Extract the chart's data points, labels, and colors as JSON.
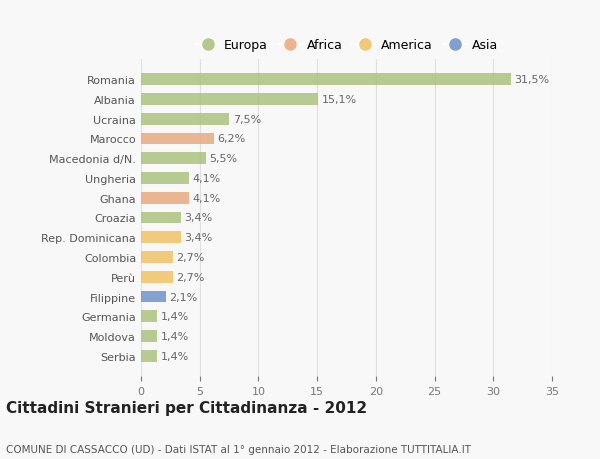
{
  "categories": [
    "Romania",
    "Albania",
    "Ucraina",
    "Marocco",
    "Macedonia d/N.",
    "Ungheria",
    "Ghana",
    "Croazia",
    "Rep. Dominicana",
    "Colombia",
    "Perù",
    "Filippine",
    "Germania",
    "Moldova",
    "Serbia"
  ],
  "values": [
    31.5,
    15.1,
    7.5,
    6.2,
    5.5,
    4.1,
    4.1,
    3.4,
    3.4,
    2.7,
    2.7,
    2.1,
    1.4,
    1.4,
    1.4
  ],
  "labels": [
    "31,5%",
    "15,1%",
    "7,5%",
    "6,2%",
    "5,5%",
    "4,1%",
    "4,1%",
    "3,4%",
    "3,4%",
    "2,7%",
    "2,7%",
    "2,1%",
    "1,4%",
    "1,4%",
    "1,4%"
  ],
  "continents": [
    "Europa",
    "Europa",
    "Europa",
    "Africa",
    "Europa",
    "Europa",
    "Africa",
    "Europa",
    "America",
    "America",
    "America",
    "Asia",
    "Europa",
    "Europa",
    "Europa"
  ],
  "continent_colors": {
    "Europa": "#a8c07a",
    "Africa": "#e8a87c",
    "America": "#f0c060",
    "Asia": "#6b8fc7"
  },
  "legend_order": [
    "Europa",
    "Africa",
    "America",
    "Asia"
  ],
  "title": "Cittadini Stranieri per Cittadinanza - 2012",
  "subtitle": "COMUNE DI CASSACCO (UD) - Dati ISTAT al 1° gennaio 2012 - Elaborazione TUTTITALIA.IT",
  "xlim": [
    0,
    35
  ],
  "xticks": [
    0,
    5,
    10,
    15,
    20,
    25,
    30,
    35
  ],
  "background_color": "#f8f8f8",
  "grid_color": "#e0e0e0",
  "bar_height": 0.6,
  "label_fontsize": 8,
  "tick_fontsize": 8,
  "title_fontsize": 11,
  "subtitle_fontsize": 7.5,
  "legend_fontsize": 9
}
